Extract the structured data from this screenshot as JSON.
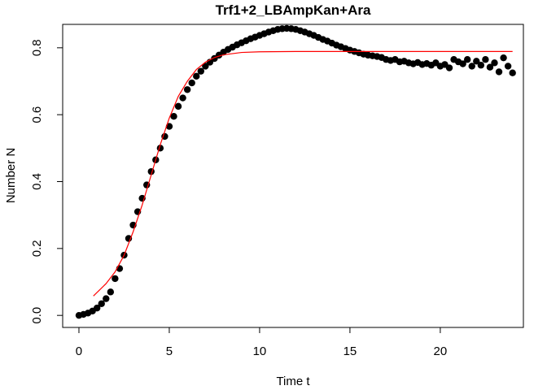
{
  "chart_data": {
    "type": "scatter",
    "title": "Trf1+2_LBAmpKan+Ara",
    "x_label": "Time t",
    "y_label": "Number N",
    "xlim": [
      -0.9,
      24.6
    ],
    "ylim": [
      -0.036,
      0.87
    ],
    "xticks": [
      0,
      5,
      10,
      15,
      20
    ],
    "yticks": [
      {
        "value": 0,
        "label": "0.0"
      },
      0.2,
      0.4,
      0.6,
      0.8
    ],
    "series": [
      {
        "type": "scatter",
        "color": "#000000",
        "x": [
          0,
          0.25,
          0.5,
          0.75,
          1,
          1.25,
          1.5,
          1.75,
          2,
          2.25,
          2.5,
          2.75,
          3,
          3.25,
          3.5,
          3.75,
          4,
          4.25,
          4.5,
          4.75,
          5,
          5.25,
          5.5,
          5.75,
          6,
          6.25,
          6.5,
          6.75,
          7,
          7.25,
          7.5,
          7.75,
          8,
          8.25,
          8.5,
          8.75,
          9,
          9.25,
          9.5,
          9.75,
          10,
          10.25,
          10.5,
          10.75,
          11,
          11.25,
          11.5,
          11.75,
          12,
          12.25,
          12.5,
          12.75,
          13,
          13.25,
          13.5,
          13.75,
          14,
          14.25,
          14.5,
          14.75,
          15,
          15.25,
          15.5,
          15.75,
          16,
          16.25,
          16.5,
          16.75,
          17,
          17.25,
          17.5,
          17.75,
          18,
          18.25,
          18.5,
          18.75,
          19,
          19.25,
          19.5,
          19.75,
          20,
          20.25,
          20.5,
          20.75,
          21,
          21.25,
          21.5,
          21.75,
          22,
          22.25,
          22.5,
          22.75,
          23,
          23.25,
          23.5,
          23.75,
          24
        ],
        "values": [
          0,
          0.003,
          0.007,
          0.013,
          0.022,
          0.035,
          0.05,
          0.07,
          0.11,
          0.14,
          0.18,
          0.23,
          0.27,
          0.31,
          0.35,
          0.39,
          0.43,
          0.465,
          0.5,
          0.535,
          0.565,
          0.595,
          0.625,
          0.65,
          0.675,
          0.695,
          0.715,
          0.73,
          0.745,
          0.757,
          0.768,
          0.778,
          0.787,
          0.795,
          0.802,
          0.809,
          0.815,
          0.821,
          0.827,
          0.832,
          0.837,
          0.842,
          0.847,
          0.851,
          0.855,
          0.857,
          0.858,
          0.857,
          0.855,
          0.851,
          0.847,
          0.842,
          0.837,
          0.831,
          0.825,
          0.82,
          0.814,
          0.808,
          0.803,
          0.798,
          0.793,
          0.789,
          0.785,
          0.781,
          0.778,
          0.776,
          0.774,
          0.771,
          0.765,
          0.762,
          0.765,
          0.758,
          0.76,
          0.755,
          0.752,
          0.756,
          0.75,
          0.753,
          0.748,
          0.755,
          0.745,
          0.75,
          0.74,
          0.765,
          0.758,
          0.752,
          0.765,
          0.745,
          0.76,
          0.748,
          0.765,
          0.742,
          0.755,
          0.728,
          0.77,
          0.745,
          0.725
        ]
      },
      {
        "type": "line",
        "color": "#ff0000",
        "x": [
          0.8,
          1.5,
          2,
          2.5,
          3,
          3.5,
          4,
          4.5,
          5,
          5.5,
          6,
          6.5,
          7,
          7.5,
          8,
          9,
          10,
          12,
          16,
          20,
          24
        ],
        "values": [
          0.058,
          0.095,
          0.13,
          0.18,
          0.25,
          0.33,
          0.42,
          0.51,
          0.59,
          0.655,
          0.7,
          0.735,
          0.757,
          0.771,
          0.779,
          0.786,
          0.788,
          0.789,
          0.789,
          0.789,
          0.789
        ]
      }
    ]
  }
}
